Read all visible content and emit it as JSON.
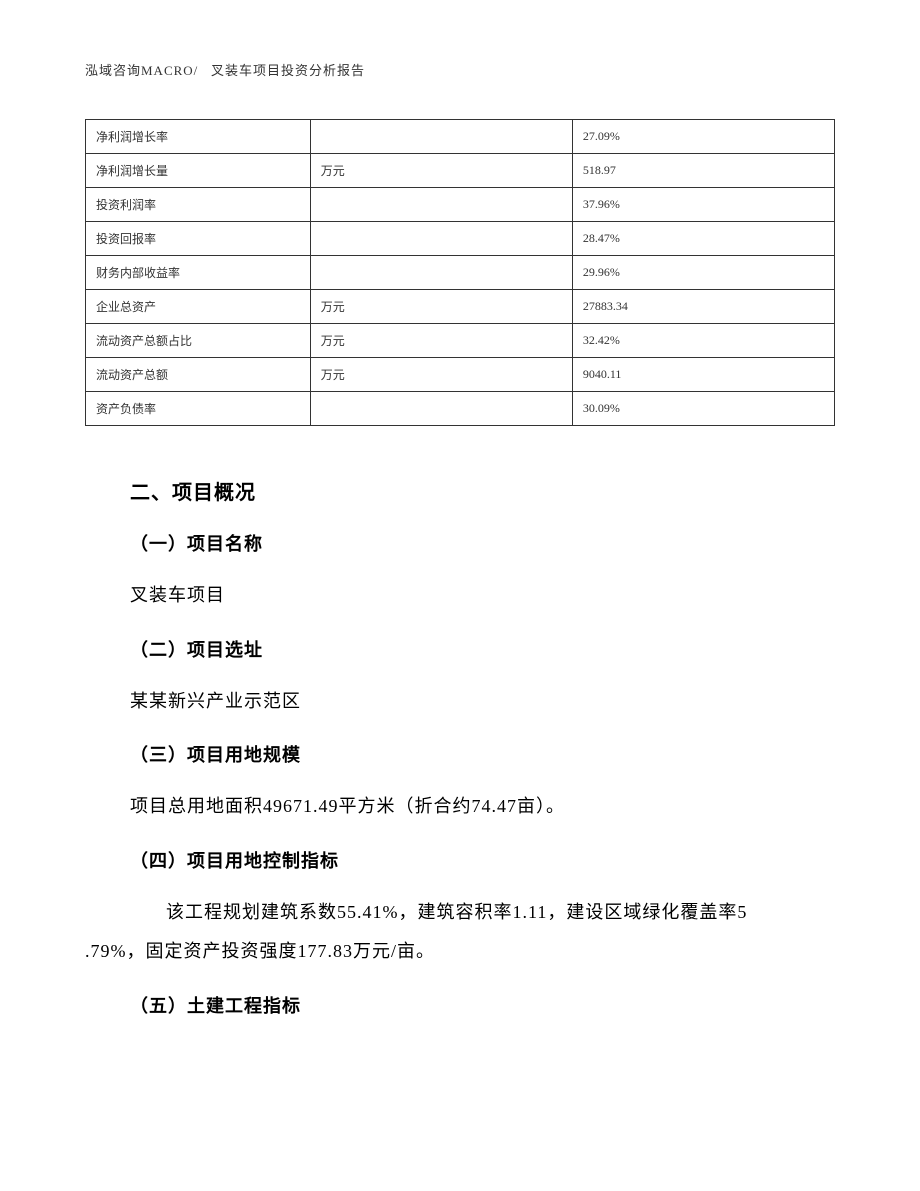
{
  "header": {
    "company": "泓域咨询MACRO/",
    "title": "叉装车项目投资分析报告"
  },
  "table": {
    "rows": [
      {
        "label": "净利润增长率",
        "unit": "",
        "value": "27.09%"
      },
      {
        "label": "净利润增长量",
        "unit": "万元",
        "value": "518.97"
      },
      {
        "label": "投资利润率",
        "unit": "",
        "value": "37.96%"
      },
      {
        "label": "投资回报率",
        "unit": "",
        "value": "28.47%"
      },
      {
        "label": "财务内部收益率",
        "unit": "",
        "value": "29.96%"
      },
      {
        "label": "企业总资产",
        "unit": "万元",
        "value": "27883.34"
      },
      {
        "label": "流动资产总额占比",
        "unit": "万元",
        "value": "32.42%"
      },
      {
        "label": "流动资产总额",
        "unit": "万元",
        "value": "9040.11"
      },
      {
        "label": "资产负债率",
        "unit": "",
        "value": "30.09%"
      }
    ]
  },
  "sections": {
    "h2": "二、项目概况",
    "s1": {
      "heading": "（一）项目名称",
      "body": "叉装车项目"
    },
    "s2": {
      "heading": "（二）项目选址",
      "body": "某某新兴产业示范区"
    },
    "s3": {
      "heading": "（三）项目用地规模",
      "body": "项目总用地面积49671.49平方米（折合约74.47亩）。"
    },
    "s4": {
      "heading": "（四）项目用地控制指标",
      "body_line1": "该工程规划建筑系数55.41%，建筑容积率1.11，建设区域绿化覆盖率5",
      "body_line2": ".79%，固定资产投资强度177.83万元/亩。"
    },
    "s5": {
      "heading": "（五）土建工程指标"
    }
  }
}
